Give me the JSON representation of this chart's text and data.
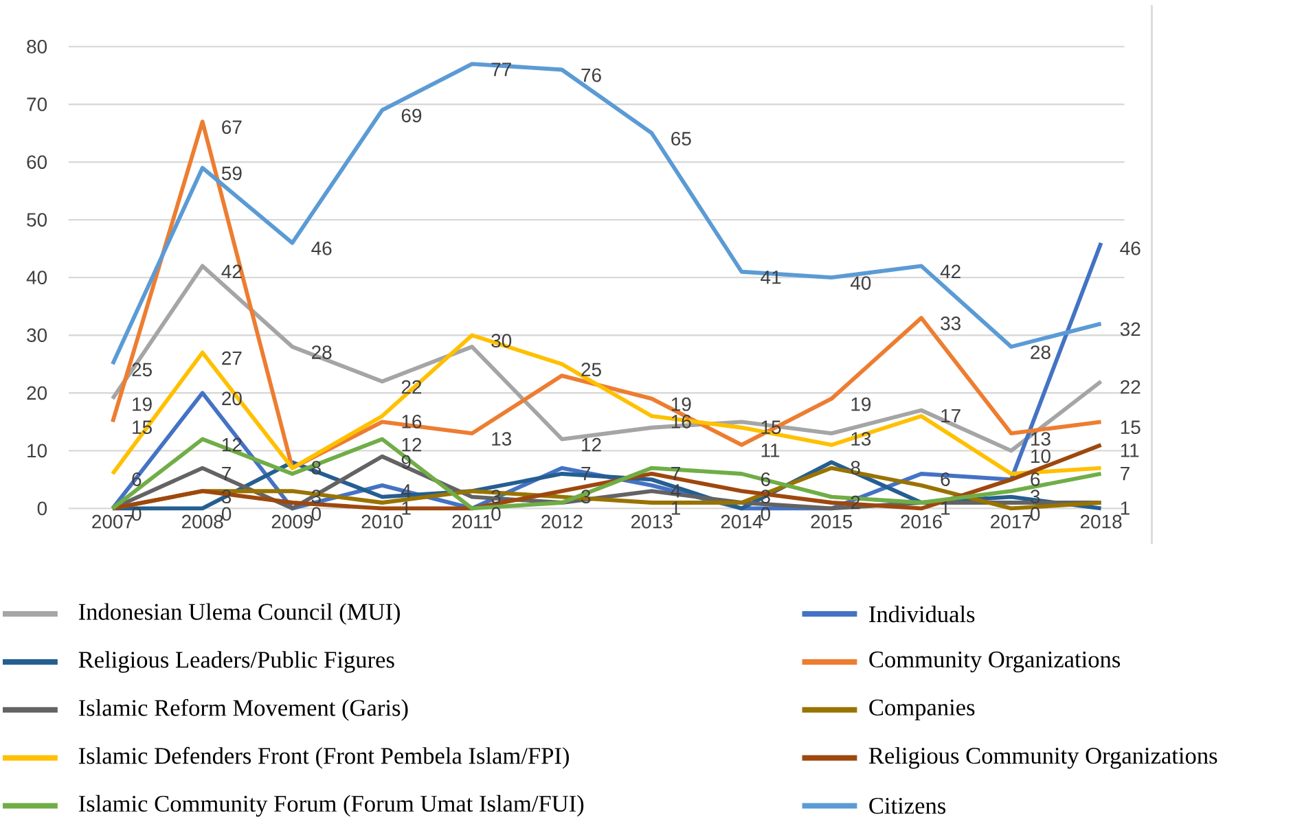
{
  "chart_data": {
    "type": "line",
    "categories": [
      "2007",
      "2008",
      "2009",
      "2010",
      "2011",
      "2012",
      "2013",
      "2014",
      "2015",
      "2016",
      "2017",
      "2018"
    ],
    "ylim": [
      0,
      80
    ],
    "yticks": [
      0,
      10,
      20,
      30,
      40,
      50,
      60,
      70,
      80
    ],
    "grid": "y",
    "legend": "bottom",
    "marker": "none",
    "line_style": "solid",
    "series": [
      {
        "name": "Indonesian Ulema Council (MUI)",
        "color": "#a5a5a5",
        "values": [
          19,
          42,
          28,
          22,
          28,
          12,
          14,
          15,
          13,
          17,
          10,
          22
        ],
        "value_labels": [
          "19",
          "42",
          "28",
          "22",
          null,
          "12",
          null,
          "15",
          "13",
          "17",
          "10",
          "22"
        ]
      },
      {
        "name": "Individuals",
        "color": "#4472c4",
        "values": [
          0,
          20,
          0,
          4,
          0,
          7,
          4,
          0,
          0,
          6,
          5,
          46
        ],
        "value_labels": [
          "0",
          "20",
          "0",
          "4",
          "0",
          "7",
          "4",
          "0",
          null,
          "6",
          null,
          "46"
        ]
      },
      {
        "name": "Religious Leaders/Public Figures",
        "color": "#255e91",
        "values": [
          0,
          0,
          8,
          2,
          3,
          6,
          5,
          0,
          8,
          1,
          2,
          0
        ],
        "value_labels": [
          null,
          "0",
          "8",
          null,
          "3",
          null,
          null,
          null,
          "8",
          "1",
          null,
          null
        ]
      },
      {
        "name": "Community Organizations",
        "color": "#ed7d31",
        "values": [
          15,
          67,
          7,
          15,
          13,
          23,
          19,
          11,
          19,
          33,
          13,
          15
        ],
        "value_labels": [
          "15",
          "67",
          null,
          null,
          "13",
          null,
          "19",
          "11",
          "19",
          "33",
          "13",
          "15"
        ]
      },
      {
        "name": "Islamic Reform Movement (Garis)",
        "color": "#636363",
        "values": [
          0,
          7,
          0,
          9,
          2,
          1,
          3,
          1,
          0,
          1,
          1,
          1
        ],
        "value_labels": [
          null,
          "7",
          null,
          "9",
          null,
          null,
          null,
          null,
          null,
          null,
          null,
          "1"
        ]
      },
      {
        "name": "Companies",
        "color": "#997300",
        "values": [
          0,
          3,
          3,
          1,
          3,
          2,
          1,
          1,
          7,
          4,
          0,
          1
        ],
        "value_labels": [
          null,
          "3",
          "3",
          "1",
          null,
          null,
          "1",
          null,
          null,
          null,
          "0",
          null
        ]
      },
      {
        "name": "Islamic Defenders Front (Front Pembela Islam/FPI)",
        "color": "#ffc000",
        "values": [
          6,
          27,
          7,
          16,
          30,
          25,
          16,
          14,
          11,
          16,
          6,
          7
        ],
        "value_labels": [
          "6",
          "27",
          null,
          "16",
          "30",
          "25",
          "16",
          null,
          null,
          null,
          "6",
          "7"
        ]
      },
      {
        "name": "Religious Community Organizations",
        "color": "#9e480e",
        "values": [
          0,
          3,
          1,
          0,
          0,
          3,
          6,
          3,
          1,
          0,
          5,
          11
        ],
        "value_labels": [
          null,
          null,
          null,
          null,
          null,
          "3",
          null,
          "3",
          null,
          null,
          null,
          "11"
        ]
      },
      {
        "name": "Islamic Community Forum (Forum Umat Islam/FUI)",
        "color": "#70ad47",
        "values": [
          0,
          12,
          6,
          12,
          0,
          1,
          7,
          6,
          2,
          1,
          3,
          6
        ],
        "value_labels": [
          null,
          "12",
          null,
          "12",
          null,
          null,
          "7",
          "6",
          "2",
          null,
          "3",
          null
        ]
      },
      {
        "name": "Citizens",
        "color": "#5b9bd5",
        "values": [
          25,
          59,
          46,
          69,
          77,
          76,
          65,
          41,
          40,
          42,
          28,
          32
        ],
        "value_labels": [
          "25",
          "59",
          "46",
          "69",
          "77",
          "76",
          "65",
          "41",
          "40",
          "42",
          "28",
          "32"
        ]
      }
    ]
  }
}
